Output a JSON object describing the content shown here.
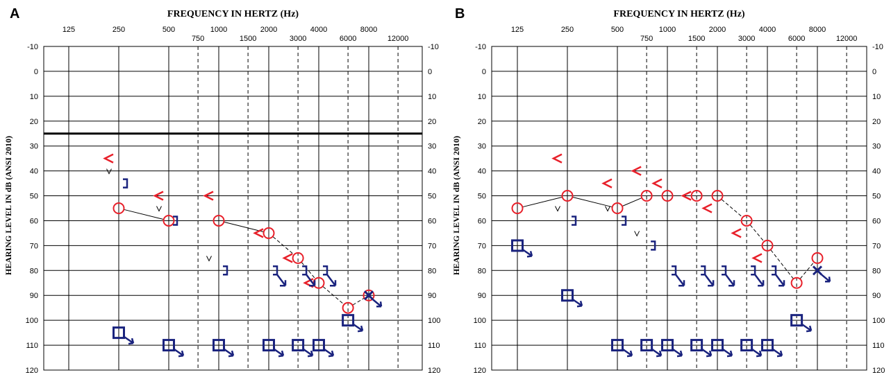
{
  "chart_data": [
    {
      "type": "scatter",
      "panel_label": "A",
      "title": "FREQUENCY IN HERTZ (Hz)",
      "ylabel": "HEARING LEVEL IN dB (ANSI 2010)",
      "ylim": [
        -10,
        120
      ],
      "y_reversed": true,
      "x_scale": "log",
      "x_ticks_major": [
        "125",
        "250",
        "500",
        "1000",
        "2000",
        "4000",
        "8000"
      ],
      "x_ticks_minor": [
        "750",
        "1500",
        "3000",
        "6000",
        "12000"
      ],
      "y_ticks": [
        "-10",
        "0",
        "10",
        "20",
        "30",
        "40",
        "50",
        "60",
        "70",
        "80",
        "90",
        "100",
        "110",
        "120"
      ],
      "normal_limit_db": 25,
      "colors": {
        "right_ear": "#e8202a",
        "left_ear": "#1a237e",
        "grid": "#000000"
      },
      "series": [
        {
          "symbol": "circle",
          "connected": true,
          "points": [
            [
              250,
              55
            ],
            [
              500,
              60
            ],
            [
              1000,
              60
            ],
            [
              2000,
              65
            ],
            [
              3000,
              75
            ],
            [
              4000,
              85
            ],
            [
              6000,
              95
            ],
            [
              8000,
              90
            ]
          ]
        },
        {
          "symbol": "lt-bracket",
          "points": [
            [
              250,
              35
            ],
            [
              500,
              50
            ],
            [
              1000,
              50
            ],
            [
              2000,
              65
            ],
            [
              3000,
              75
            ],
            [
              4000,
              85
            ]
          ]
        },
        {
          "symbol": "rt-bracket",
          "points": [
            [
              250,
              45
            ],
            [
              500,
              60
            ],
            [
              1000,
              80
            ],
            [
              2000,
              80
            ],
            [
              3000,
              80
            ],
            [
              4000,
              80
            ]
          ]
        },
        {
          "symbol": "square-arrow",
          "points": [
            [
              250,
              105
            ],
            [
              500,
              110
            ],
            [
              1000,
              110
            ],
            [
              2000,
              110
            ],
            [
              3000,
              110
            ],
            [
              4000,
              110
            ],
            [
              6000,
              100
            ]
          ]
        },
        {
          "symbol": "x",
          "points": [
            [
              8000,
              90
            ]
          ]
        },
        {
          "symbol": "v",
          "points": [
            [
              250,
              40
            ],
            [
              500,
              55
            ],
            [
              1000,
              75
            ]
          ]
        }
      ]
    },
    {
      "type": "scatter",
      "panel_label": "B",
      "title": "FREQUENCY IN HERTZ (Hz)",
      "ylabel": "HEARING LEVEL IN dB (ANSI 2010)",
      "ylim": [
        -10,
        120
      ],
      "y_reversed": true,
      "x_scale": "log",
      "x_ticks_major": [
        "125",
        "250",
        "500",
        "1000",
        "2000",
        "4000",
        "8000"
      ],
      "x_ticks_minor": [
        "750",
        "1500",
        "3000",
        "6000",
        "12000"
      ],
      "y_ticks": [
        "-10",
        "0",
        "10",
        "20",
        "30",
        "40",
        "50",
        "60",
        "70",
        "80",
        "90",
        "100",
        "110",
        "120"
      ],
      "colors": {
        "right_ear": "#e8202a",
        "left_ear": "#1a237e",
        "grid": "#000000"
      },
      "series": [
        {
          "symbol": "circle",
          "connected": true,
          "points": [
            [
              125,
              55
            ],
            [
              250,
              50
            ],
            [
              500,
              55
            ],
            [
              750,
              50
            ],
            [
              1000,
              50
            ],
            [
              1500,
              50
            ],
            [
              2000,
              50
            ],
            [
              3000,
              60
            ],
            [
              4000,
              70
            ],
            [
              6000,
              85
            ],
            [
              8000,
              75
            ]
          ]
        },
        {
          "symbol": "lt-bracket",
          "points": [
            [
              250,
              35
            ],
            [
              500,
              45
            ],
            [
              750,
              40
            ],
            [
              1000,
              45
            ],
            [
              1500,
              50
            ],
            [
              2000,
              55
            ],
            [
              3000,
              65
            ],
            [
              4000,
              75
            ]
          ]
        },
        {
          "symbol": "rt-bracket",
          "points": [
            [
              250,
              60
            ],
            [
              500,
              60
            ],
            [
              750,
              70
            ],
            [
              1000,
              80
            ],
            [
              1500,
              80
            ],
            [
              2000,
              80
            ],
            [
              3000,
              80
            ],
            [
              4000,
              80
            ]
          ]
        },
        {
          "symbol": "square-arrow",
          "points": [
            [
              125,
              70
            ],
            [
              250,
              90
            ],
            [
              500,
              110
            ],
            [
              750,
              110
            ],
            [
              1000,
              110
            ],
            [
              1500,
              110
            ],
            [
              2000,
              110
            ],
            [
              3000,
              110
            ],
            [
              4000,
              110
            ],
            [
              6000,
              100
            ]
          ]
        },
        {
          "symbol": "x",
          "points": [
            [
              8000,
              80
            ]
          ]
        },
        {
          "symbol": "v",
          "points": [
            [
              250,
              55
            ],
            [
              500,
              55
            ],
            [
              750,
              65
            ]
          ]
        }
      ]
    }
  ]
}
